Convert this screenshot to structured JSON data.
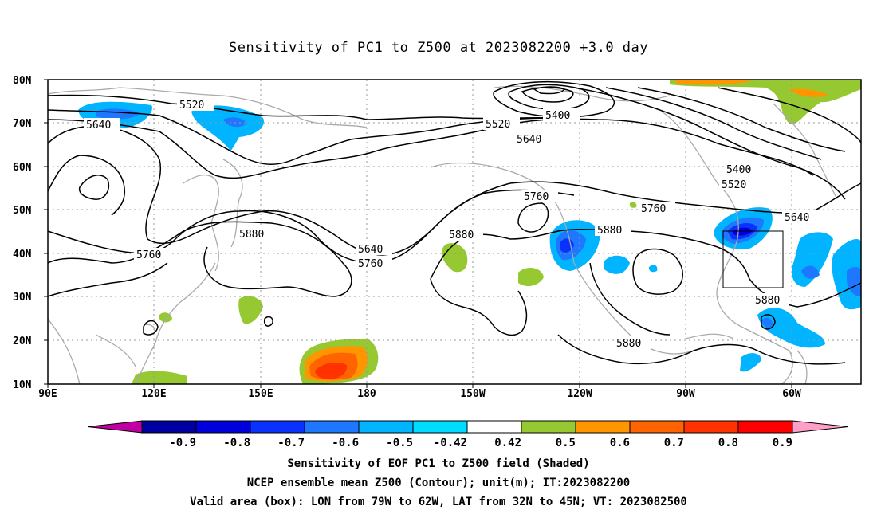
{
  "title": "Sensitivity of PC1 to Z500 at 2023082200 +3.0 day",
  "lat_labels": [
    "80N",
    "70N",
    "60N",
    "50N",
    "40N",
    "30N",
    "20N",
    "10N"
  ],
  "lon_labels": [
    "90E",
    "120E",
    "150E",
    "180",
    "150W",
    "120W",
    "90W",
    "60W"
  ],
  "contour_labels": [
    {
      "text": "5520",
      "id": "c5520a"
    },
    {
      "text": "5640",
      "id": "c5640a"
    },
    {
      "text": "5520",
      "id": "c5520b"
    },
    {
      "text": "5400",
      "id": "c5400a"
    },
    {
      "text": "5640",
      "id": "c5640b"
    },
    {
      "text": "5400",
      "id": "c5400b"
    },
    {
      "text": "5520",
      "id": "c5520c"
    },
    {
      "text": "5760",
      "id": "c5760a"
    },
    {
      "text": "5760",
      "id": "c5760b"
    },
    {
      "text": "5640",
      "id": "c5640c"
    },
    {
      "text": "5880",
      "id": "c5880a"
    },
    {
      "text": "5640",
      "id": "c5640d"
    },
    {
      "text": "5760",
      "id": "c5760c"
    },
    {
      "text": "5880",
      "id": "c5880b"
    },
    {
      "text": "5760",
      "id": "c5760d"
    },
    {
      "text": "5880",
      "id": "c5880c"
    },
    {
      "text": "5880",
      "id": "c5880d"
    },
    {
      "text": "5880",
      "id": "c5880e"
    }
  ],
  "colorbar": {
    "labels": [
      "-0.9",
      "-0.8",
      "-0.7",
      "-0.6",
      "-0.5",
      "-0.42",
      "0.42",
      "0.5",
      "0.6",
      "0.7",
      "0.8",
      "0.9"
    ],
    "colors": [
      "#0000a0",
      "#0000dc",
      "#0a32ff",
      "#1e78ff",
      "#00b4ff",
      "#00dcff",
      "#ffffff",
      "#96c832",
      "#ff9600",
      "#ff6400",
      "#ff3200",
      "#ff0000"
    ],
    "low_color": "#c000a0",
    "high_color": "#ff9fc8"
  },
  "caption": {
    "line1": "Sensitivity of EOF PC1 to Z500 field (Shaded)",
    "line2": "NCEP ensemble mean Z500 (Contour); unit(m); IT:2023082200",
    "line3": "Valid area (box): LON from 79W to 62W, LAT from 32N to 45N; VT: 2023082500"
  }
}
